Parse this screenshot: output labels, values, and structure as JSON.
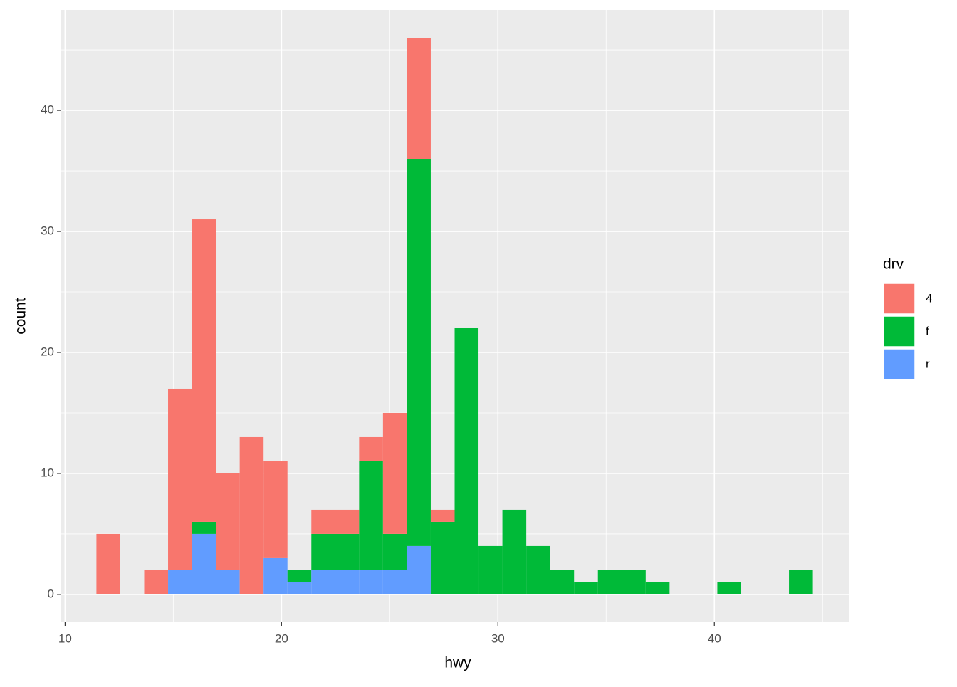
{
  "chart_data": {
    "type": "histogram",
    "x_label": "hwy",
    "y_label": "count",
    "bins": [
      11.4483,
      12.5517,
      13.6552,
      14.7586,
      15.8621,
      16.9655,
      18.069,
      19.1724,
      20.2759,
      21.3793,
      22.4828,
      23.5862,
      24.6897,
      25.7931,
      26.8966,
      28.0,
      29.1034,
      30.2069,
      31.3103,
      32.4138,
      33.5172,
      34.6207,
      35.7241,
      36.8276,
      37.931,
      39.0345,
      40.1379,
      41.2414,
      42.3448,
      43.4483,
      44.5517
    ],
    "series": [
      {
        "name": "4",
        "color": "#F8766D",
        "values": [
          5,
          0,
          2,
          15,
          25,
          8,
          13,
          8,
          0,
          2,
          2,
          2,
          10,
          10,
          1,
          0,
          0,
          0,
          0,
          0,
          0,
          0,
          0,
          0,
          0,
          0,
          0,
          0,
          0,
          0
        ]
      },
      {
        "name": "f",
        "color": "#00BA38",
        "values": [
          0,
          0,
          0,
          0,
          1,
          0,
          0,
          0,
          1,
          3,
          3,
          9,
          3,
          32,
          6,
          22,
          4,
          7,
          4,
          2,
          1,
          2,
          2,
          1,
          0,
          0,
          1,
          0,
          0,
          2
        ]
      },
      {
        "name": "r",
        "color": "#619CFF",
        "values": [
          0,
          0,
          0,
          2,
          5,
          2,
          0,
          3,
          1,
          2,
          2,
          2,
          2,
          4,
          0,
          0,
          0,
          0,
          0,
          0,
          0,
          0,
          0,
          0,
          0,
          0,
          0,
          0,
          0,
          0
        ]
      }
    ],
    "legend_title": "drv",
    "stacked": true,
    "xlim": [
      9.79,
      46.21
    ],
    "ylim": [
      -2.3,
      48.3
    ],
    "xticks": [
      10,
      20,
      30,
      40
    ],
    "yticks": [
      0,
      10,
      20,
      30,
      40
    ],
    "grid": true
  }
}
